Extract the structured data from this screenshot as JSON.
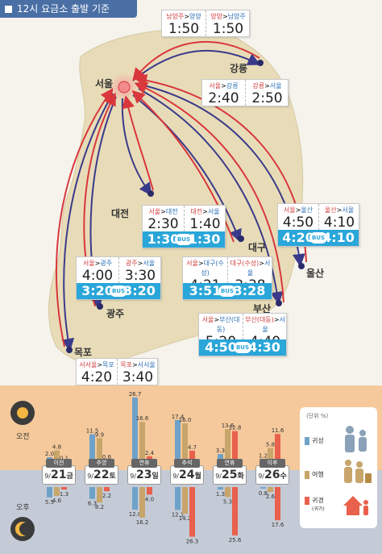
{
  "header": {
    "title": "12시 요금소 출발 기준"
  },
  "cities": {
    "seoul": "서울",
    "gangneung": "강릉",
    "daejeon": "대전",
    "daegu": "대구",
    "ulsan": "울산",
    "gwangju": "광주",
    "busan": "부산",
    "mokpo": "목포"
  },
  "routes": {
    "namyangju_yangyang": {
      "left_label_a": "남양주",
      "left_sep": ">",
      "left_label_b": "양양",
      "left_time": "1:50",
      "right_label_a": "양양",
      "right_sep": ">",
      "right_label_b": "남양주",
      "right_time": "1:50"
    },
    "seoul_gangneung": {
      "left_label_a": "서울",
      "left_sep": ">",
      "left_label_b": "강릉",
      "left_time": "2:40",
      "right_label_a": "강릉",
      "right_sep": ">",
      "right_label_b": "서울",
      "right_time": "2:50"
    },
    "seoul_daejeon": {
      "left_label_a": "서울",
      "left_sep": ">",
      "left_label_b": "대전",
      "left_time": "2:30",
      "right_label_a": "대전",
      "right_sep": ">",
      "right_label_b": "서울",
      "right_time": "1:40",
      "bus_left": "1:30",
      "bus_right": "1:30",
      "bus_badge": "BUS"
    },
    "seoul_ulsan": {
      "left_label_a": "서울",
      "left_sep": ">",
      "left_label_b": "울산",
      "left_time": "4:50",
      "right_label_a": "울산",
      "right_sep": ">",
      "right_label_b": "서울",
      "right_time": "4:10",
      "bus_left": "4:20",
      "bus_right": "4:10",
      "bus_badge": "BUS"
    },
    "seoul_daegu": {
      "left_label_a": "서울",
      "left_sep": ">",
      "left_label_b": "대구(수성)",
      "left_time": "4:21",
      "right_label_a": "대구(수성)",
      "right_sep": ">",
      "right_label_b": "서울",
      "right_time": "3:38",
      "bus_left": "3:51",
      "bus_right": "3:28",
      "bus_badge": "BUS"
    },
    "seoul_gwangju": {
      "left_label_a": "서울",
      "left_sep": ">",
      "left_label_b": "광주",
      "left_time": "4:00",
      "right_label_a": "광주",
      "right_sep": ">",
      "right_label_b": "서울",
      "right_time": "3:30",
      "bus_left": "3:20",
      "bus_right": "3:20",
      "bus_badge": "BUS"
    },
    "seoul_busan": {
      "left_label_a": "서울",
      "left_sep": ">",
      "left_label_b": "부산(대동)",
      "left_time": "5:20",
      "right_label_a": "부산(대동)",
      "right_sep": ">",
      "right_label_b": "서울",
      "right_time": "4:40",
      "bus_left": "4:50",
      "bus_right": "4:30",
      "bus_badge": "BUS"
    },
    "seoseoul_mokpo": {
      "left_label_a": "서서울",
      "left_sep": ">",
      "left_label_b": "목포",
      "left_time": "4:20",
      "right_label_a": "목포",
      "right_sep": ">",
      "right_label_b": "서서울",
      "right_time": "3:40"
    }
  },
  "bottom": {
    "morning_label": "오전",
    "afternoon_label": "오후",
    "legend": {
      "unit": "(단위 %)",
      "return": "귀성",
      "travel": "여행",
      "homecoming": "귀경",
      "homecoming_note": "(귀가)"
    }
  },
  "colors": {
    "return": "#6fa2c9",
    "travel": "#c8a56a",
    "homecoming": "#e9604c",
    "bus": "#2aa6d9",
    "arrow_red": "#d9373c",
    "arrow_blue": "#3a3a8a"
  },
  "chart_data": {
    "type": "bar",
    "categories": [
      "이전 9/21 금",
      "추앙 9/22 토",
      "연휴 9/23 일",
      "추석 9/24 월",
      "연휴 9/25 화",
      "이후 9/26 수"
    ],
    "days": [
      {
        "tag": "이전",
        "month": "9/",
        "day": "21",
        "weekday": "금"
      },
      {
        "tag": "추앙",
        "month": "9/",
        "day": "22",
        "weekday": "토"
      },
      {
        "tag": "연휴",
        "month": "9/",
        "day": "23",
        "weekday": "일"
      },
      {
        "tag": "추석",
        "month": "9/",
        "day": "24",
        "weekday": "월"
      },
      {
        "tag": "연휴",
        "month": "9/",
        "day": "25",
        "weekday": "화"
      },
      {
        "tag": "이후",
        "month": "9/",
        "day": "26",
        "weekday": "수"
      }
    ],
    "morning": {
      "series": [
        {
          "name": "귀성",
          "values": [
            2.0,
            11.5,
            26.7,
            17.4,
            3.3,
            1.2
          ]
        },
        {
          "name": "여행",
          "values": [
            4.8,
            9.9,
            16.6,
            16.0,
            13.6,
            5.8
          ]
        },
        {
          "name": "귀경",
          "values": [
            0.1,
            0.6,
            2.4,
            4.7,
            12.8,
            11.6
          ]
        }
      ]
    },
    "afternoon": {
      "series": [
        {
          "name": "귀성",
          "values": [
            5.5,
            6.3,
            12.0,
            12.1,
            1.3,
            0.8
          ]
        },
        {
          "name": "여행",
          "values": [
            4.6,
            8.2,
            16.2,
            14.2,
            5.3,
            2.6
          ]
        },
        {
          "name": "귀경",
          "values": [
            1.3,
            2.2,
            4.0,
            26.3,
            25.6,
            17.6
          ]
        }
      ]
    }
  }
}
